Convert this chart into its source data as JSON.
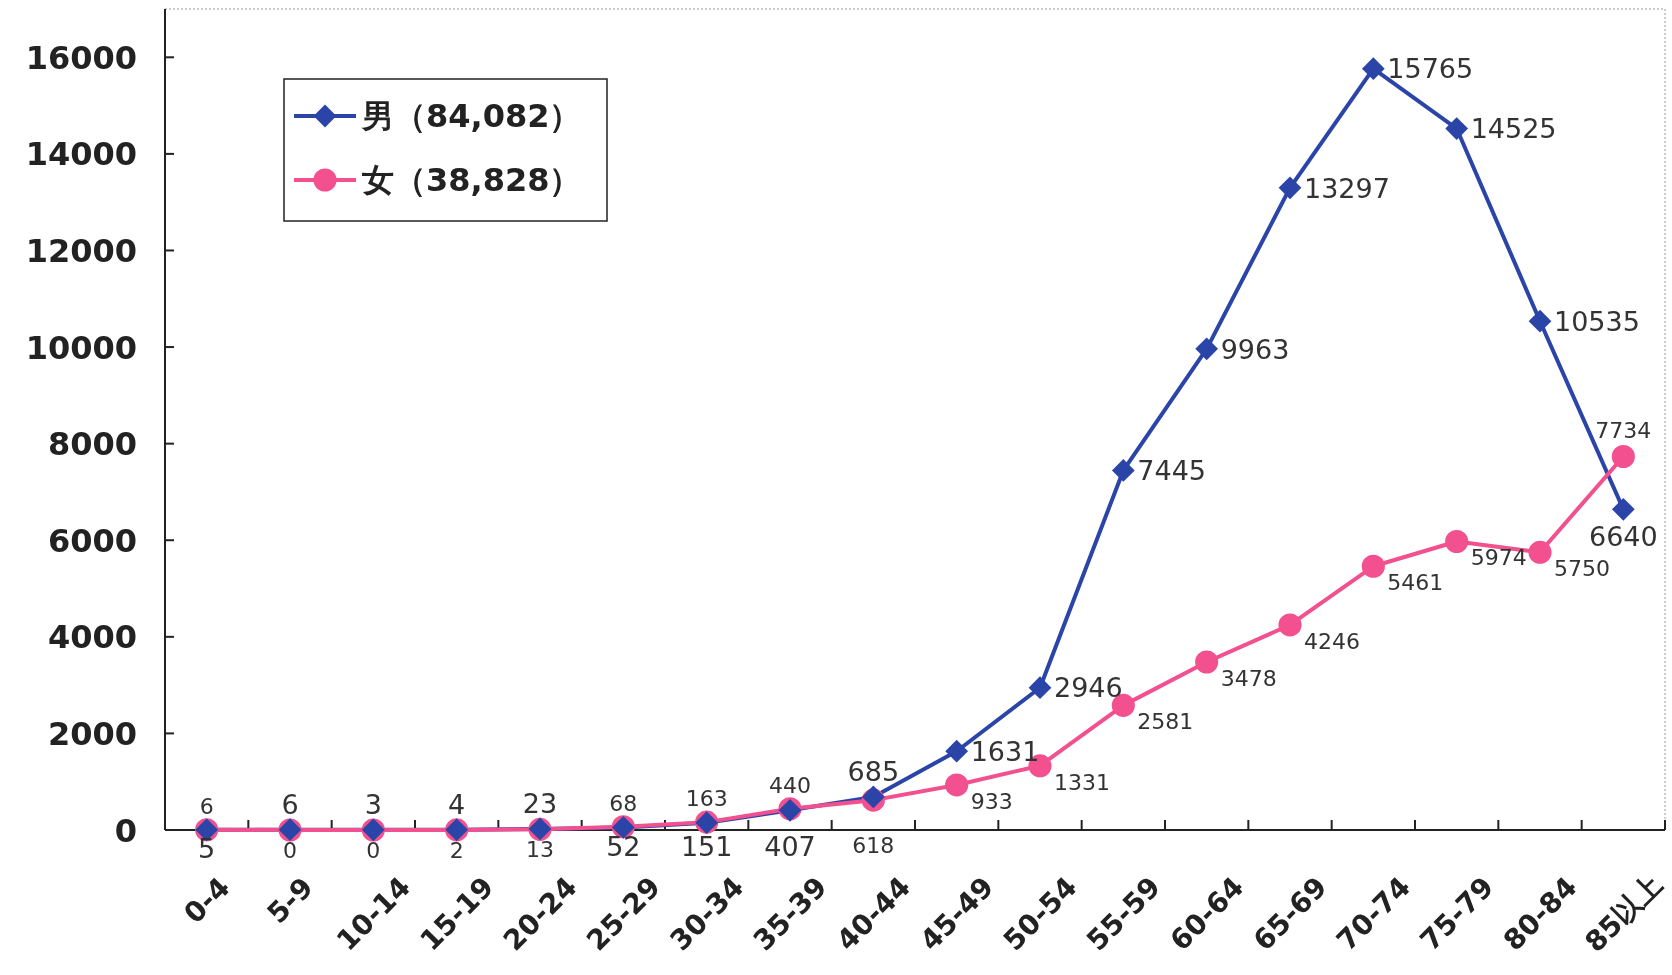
{
  "chart_data": {
    "type": "line",
    "categories": [
      "0-4",
      "5-9",
      "10-14",
      "15-19",
      "20-24",
      "25-29",
      "30-34",
      "35-39",
      "40-44",
      "45-49",
      "50-54",
      "55-59",
      "60-64",
      "65-69",
      "70-74",
      "75-79",
      "80-84",
      "85以上"
    ],
    "ylim": [
      0,
      17000
    ],
    "yticks": [
      0,
      2000,
      4000,
      6000,
      8000,
      10000,
      12000,
      14000,
      16000
    ],
    "legend": "top left",
    "data_labels": true,
    "line_style": "solid",
    "series": [
      {
        "name": "男（84,082）",
        "color": "#2b44a8",
        "marker": "diamond",
        "values": [
          5,
          6,
          3,
          4,
          23,
          52,
          151,
          407,
          685,
          1631,
          2946,
          7445,
          9963,
          13297,
          15765,
          14525,
          10535,
          6640
        ]
      },
      {
        "name": "女（38,828）",
        "color": "#f2508e",
        "marker": "circle",
        "values": [
          6,
          0,
          0,
          2,
          13,
          68,
          163,
          440,
          618,
          933,
          1331,
          2581,
          3478,
          4246,
          5461,
          5974,
          5750,
          7734
        ]
      }
    ]
  }
}
